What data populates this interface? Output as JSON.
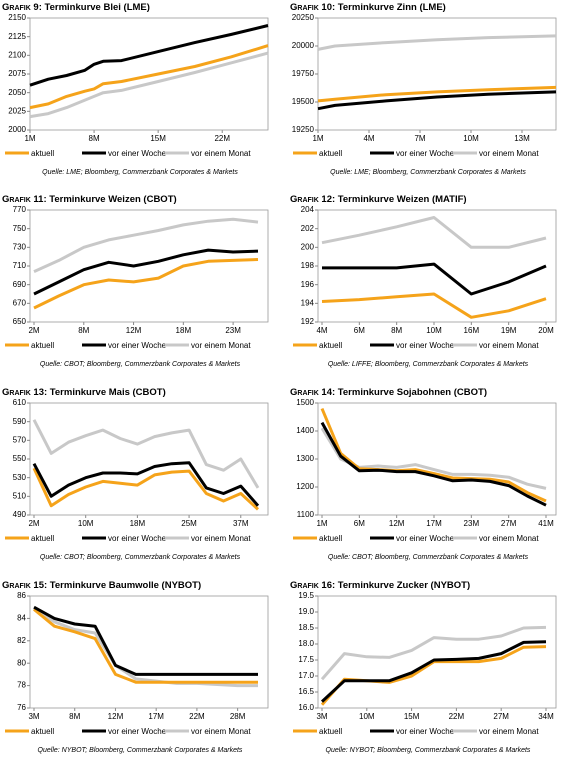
{
  "chart_data": [
    {
      "type": "line",
      "label": "Grafik 9:",
      "title": "Terminkurve Blei (LME)",
      "source": "Quelle: LME; Bloomberg, Commerzbank Corporates & Markets",
      "x": [
        1,
        3,
        5,
        7,
        8,
        9,
        11,
        15,
        19,
        23,
        27
      ],
      "xlim": [
        1,
        27
      ],
      "xticks": [
        {
          "value": 1,
          "label": "1M"
        },
        {
          "value": 8,
          "label": "8M"
        },
        {
          "value": 15,
          "label": "15M"
        },
        {
          "value": 22,
          "label": "22M"
        }
      ],
      "ylim": [
        2000,
        2150
      ],
      "yticks": [
        2000,
        2025,
        2050,
        2075,
        2100,
        2125,
        2150
      ],
      "series": [
        {
          "name": "aktuell",
          "color": "#f5a31a",
          "values": [
            2030,
            2035,
            2045,
            2052,
            2055,
            2062,
            2065,
            2075,
            2085,
            2098,
            2113
          ]
        },
        {
          "name": "vor einer Woche",
          "color": "#000000",
          "values": [
            2060,
            2068,
            2073,
            2080,
            2088,
            2092,
            2093,
            2105,
            2117,
            2128,
            2140
          ]
        },
        {
          "name": "vor einem Monat",
          "color": "#c8c8c8",
          "values": [
            2018,
            2022,
            2030,
            2040,
            2045,
            2050,
            2053,
            2065,
            2077,
            2090,
            2103
          ]
        }
      ]
    },
    {
      "type": "line",
      "label": "Grafik 10:",
      "title": "Terminkurve Zinn (LME)",
      "source": "Quelle: LME; Bloomberg, Commerzbank Corporates & Markets",
      "x": [
        1,
        2,
        5,
        8,
        11,
        15
      ],
      "xlim": [
        1,
        15
      ],
      "xticks": [
        {
          "value": 1,
          "label": "1M"
        },
        {
          "value": 4,
          "label": "4M"
        },
        {
          "value": 7,
          "label": "7M"
        },
        {
          "value": 10,
          "label": "10M"
        },
        {
          "value": 13,
          "label": "13M"
        }
      ],
      "ylim": [
        19250,
        20250
      ],
      "yticks": [
        19250,
        19500,
        19750,
        20000,
        20250
      ],
      "series": [
        {
          "name": "aktuell",
          "color": "#f5a31a",
          "values": [
            19510,
            19525,
            19565,
            19590,
            19610,
            19630
          ]
        },
        {
          "name": "vor einer Woche",
          "color": "#000000",
          "values": [
            19440,
            19470,
            19510,
            19545,
            19570,
            19590
          ]
        },
        {
          "name": "vor einem Monat",
          "color": "#c8c8c8",
          "values": [
            19970,
            20000,
            20030,
            20055,
            20075,
            20090
          ]
        }
      ]
    },
    {
      "type": "line",
      "label": "Grafik 11:",
      "title": "Terminkurve Weizen (CBOT)",
      "source": "Quelle: CBOT; Bloomberg, Commerzbank Corporates & Markets",
      "categories": [
        "2M",
        null,
        "8M",
        null,
        "12M",
        null,
        "18M",
        null,
        "23M",
        null
      ],
      "ylim": [
        650,
        770
      ],
      "yticks": [
        650,
        670,
        690,
        710,
        730,
        750,
        770
      ],
      "series": [
        {
          "name": "aktuell",
          "color": "#f5a31a",
          "values": [
            665,
            678,
            690,
            695,
            693,
            697,
            710,
            715,
            716,
            717
          ]
        },
        {
          "name": "vor einer Woche",
          "color": "#000000",
          "values": [
            680,
            693,
            706,
            714,
            710,
            715,
            722,
            727,
            725,
            726
          ]
        },
        {
          "name": "vor einem Monat",
          "color": "#c8c8c8",
          "values": [
            704,
            716,
            730,
            738,
            743,
            748,
            754,
            758,
            760,
            757
          ]
        }
      ]
    },
    {
      "type": "line",
      "label": "Grafik 12:",
      "title": "Terminkurve Weizen (MATIF)",
      "source": "Quelle: LIFFE; Bloomberg, Commerzbank Corporates & Markets",
      "categories": [
        "4M",
        "6M",
        "8M",
        "10M",
        "16M",
        "19M",
        "20M"
      ],
      "ylim": [
        192,
        204
      ],
      "yticks": [
        192,
        194,
        196,
        198,
        200,
        202,
        204
      ],
      "series": [
        {
          "name": "aktuell",
          "color": "#f5a31a",
          "values": [
            194.2,
            194.4,
            194.7,
            195.0,
            192.5,
            193.2,
            194.5
          ]
        },
        {
          "name": "vor einer Woche",
          "color": "#000000",
          "values": [
            197.8,
            197.8,
            197.8,
            198.2,
            195.0,
            196.3,
            198.0
          ]
        },
        {
          "name": "vor einem Monat",
          "color": "#c8c8c8",
          "values": [
            200.5,
            201.3,
            202.2,
            203.2,
            200.0,
            200.0,
            201.0
          ]
        }
      ]
    },
    {
      "type": "line",
      "label": "Grafik 13:",
      "title": "Terminkurve Mais (CBOT)",
      "source": "Quelle: CBOT; Bloomberg, Commerzbank Corporates & Markets",
      "categories": [
        "2M",
        null,
        null,
        "10M",
        null,
        null,
        "18M",
        null,
        null,
        "25M",
        null,
        null,
        "37M",
        null
      ],
      "ylim": [
        490,
        610
      ],
      "yticks": [
        490,
        510,
        530,
        550,
        570,
        590,
        610
      ],
      "series": [
        {
          "name": "aktuell",
          "color": "#f5a31a",
          "values": [
            540,
            500,
            512,
            520,
            526,
            524,
            522,
            533,
            536,
            537,
            513,
            505,
            513,
            496
          ]
        },
        {
          "name": "vor einer Woche",
          "color": "#000000",
          "values": [
            545,
            510,
            522,
            530,
            535,
            535,
            534,
            542,
            545,
            546,
            519,
            513,
            521,
            500
          ]
        },
        {
          "name": "vor einem Monat",
          "color": "#c8c8c8",
          "values": [
            592,
            556,
            568,
            575,
            581,
            572,
            566,
            574,
            578,
            581,
            544,
            538,
            550,
            519
          ]
        }
      ]
    },
    {
      "type": "line",
      "label": "Grafik 14:",
      "title": "Terminkurve Sojabohnen (CBOT)",
      "source": "Quelle: CBOT; Bloomberg, Commerzbank Corporates & Markets",
      "categories": [
        "1M",
        null,
        "6M",
        null,
        "12M",
        null,
        "17M",
        null,
        "23M",
        null,
        "27M",
        null,
        "41M"
      ],
      "ylim": [
        1100,
        1500
      ],
      "yticks": [
        1100,
        1200,
        1300,
        1400,
        1500
      ],
      "series": [
        {
          "name": "aktuell",
          "color": "#f5a31a",
          "values": [
            1480,
            1320,
            1265,
            1262,
            1258,
            1262,
            1248,
            1232,
            1230,
            1228,
            1218,
            1180,
            1150
          ]
        },
        {
          "name": "vor einer Woche",
          "color": "#000000",
          "values": [
            1430,
            1310,
            1258,
            1260,
            1255,
            1255,
            1240,
            1222,
            1225,
            1220,
            1205,
            1168,
            1135
          ]
        },
        {
          "name": "vor einem Monat",
          "color": "#c8c8c8",
          "values": [
            1410,
            1300,
            1270,
            1275,
            1270,
            1280,
            1262,
            1245,
            1245,
            1242,
            1235,
            1210,
            1195
          ]
        }
      ]
    },
    {
      "type": "line",
      "label": "Grafik 15:",
      "title": "Terminkurve Baumwolle (NYBOT)",
      "source": "Quelle: NYBOT; Bloomberg, Commerzbank Corporates & Markets",
      "categories": [
        "3M",
        null,
        "8M",
        null,
        "12M",
        null,
        "17M",
        null,
        "22M",
        null,
        "28M",
        null
      ],
      "ylim": [
        76,
        86
      ],
      "yticks": [
        76,
        78,
        80,
        82,
        84,
        86
      ],
      "series": [
        {
          "name": "aktuell",
          "color": "#f5a31a",
          "values": [
            84.8,
            83.3,
            82.8,
            82.2,
            79.0,
            78.3,
            78.3,
            78.3,
            78.3,
            78.3,
            78.3,
            78.3
          ]
        },
        {
          "name": "vor einer Woche",
          "color": "#000000",
          "values": [
            85.0,
            84.0,
            83.5,
            83.3,
            79.8,
            79.0,
            79.0,
            79.0,
            79.0,
            79.0,
            79.0,
            79.0
          ]
        },
        {
          "name": "vor einem Monat",
          "color": "#c8c8c8",
          "values": [
            84.9,
            83.7,
            83.0,
            82.7,
            79.8,
            78.6,
            78.4,
            78.2,
            78.2,
            78.1,
            78.0,
            78.0
          ]
        }
      ]
    },
    {
      "type": "line",
      "label": "Grafik 16:",
      "title": "Terminkurve Zucker (NYBOT)",
      "source": "Quelle: NYBOT; Bloomberg, Commerzbank Corporates & Markets",
      "categories": [
        "3M",
        null,
        "10M",
        null,
        "15M",
        null,
        "22M",
        null,
        "27M",
        null,
        "34M"
      ],
      "ylim": [
        16,
        19.5
      ],
      "yticks": [
        {
          "value": 16,
          "label": "16.0"
        },
        {
          "value": 16.5,
          "label": "16.5"
        },
        {
          "value": 17,
          "label": "17.0"
        },
        {
          "value": 17.5,
          "label": "17.5"
        },
        {
          "value": 18,
          "label": "18.0"
        },
        {
          "value": 18.5,
          "label": "18.5"
        },
        {
          "value": 19,
          "label": "19.0"
        },
        {
          "value": 19.5,
          "label": "19.5"
        }
      ],
      "series": [
        {
          "name": "aktuell",
          "color": "#f5a31a",
          "values": [
            16.1,
            16.9,
            16.85,
            16.8,
            17.0,
            17.45,
            17.45,
            17.45,
            17.55,
            17.9,
            17.92
          ]
        },
        {
          "name": "vor einer Woche",
          "color": "#000000",
          "values": [
            16.2,
            16.85,
            16.85,
            16.85,
            17.1,
            17.5,
            17.52,
            17.55,
            17.7,
            18.05,
            18.07
          ]
        },
        {
          "name": "vor einem Monat",
          "color": "#c8c8c8",
          "values": [
            16.9,
            17.7,
            17.6,
            17.58,
            17.8,
            18.2,
            18.15,
            18.15,
            18.25,
            18.5,
            18.52
          ]
        }
      ]
    }
  ]
}
